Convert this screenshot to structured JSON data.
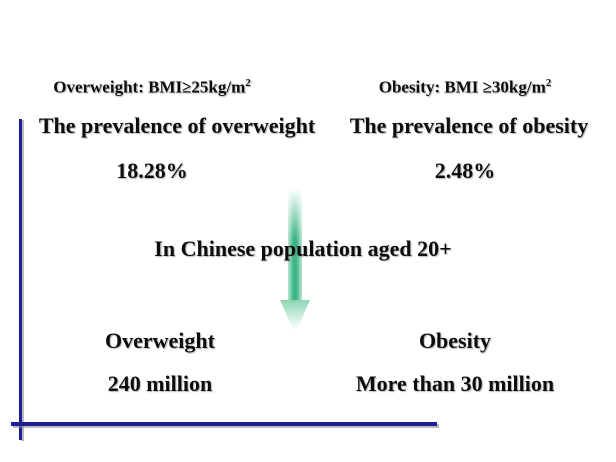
{
  "slide": {
    "background_color": "#ffffff",
    "axis_color": "#1d1d96",
    "arrow_color": "#3cb584",
    "context_line": "In Chinese population aged 20+"
  },
  "columns": {
    "left": {
      "criteria_text": "Overweight: BMI≥25kg/m",
      "criteria_superscript": "2",
      "prevalence_label": "The prevalence of overweight",
      "prevalence_value": "18.28%",
      "population_label": "Overweight",
      "population_value": "240 million"
    },
    "right": {
      "criteria_text": "Obesity: BMI ≥30kg/m",
      "criteria_superscript": "2",
      "prevalence_label": "The prevalence of obesity",
      "prevalence_value": "2.48%",
      "population_label": "Obesity",
      "population_value": "More than 30 million"
    }
  }
}
